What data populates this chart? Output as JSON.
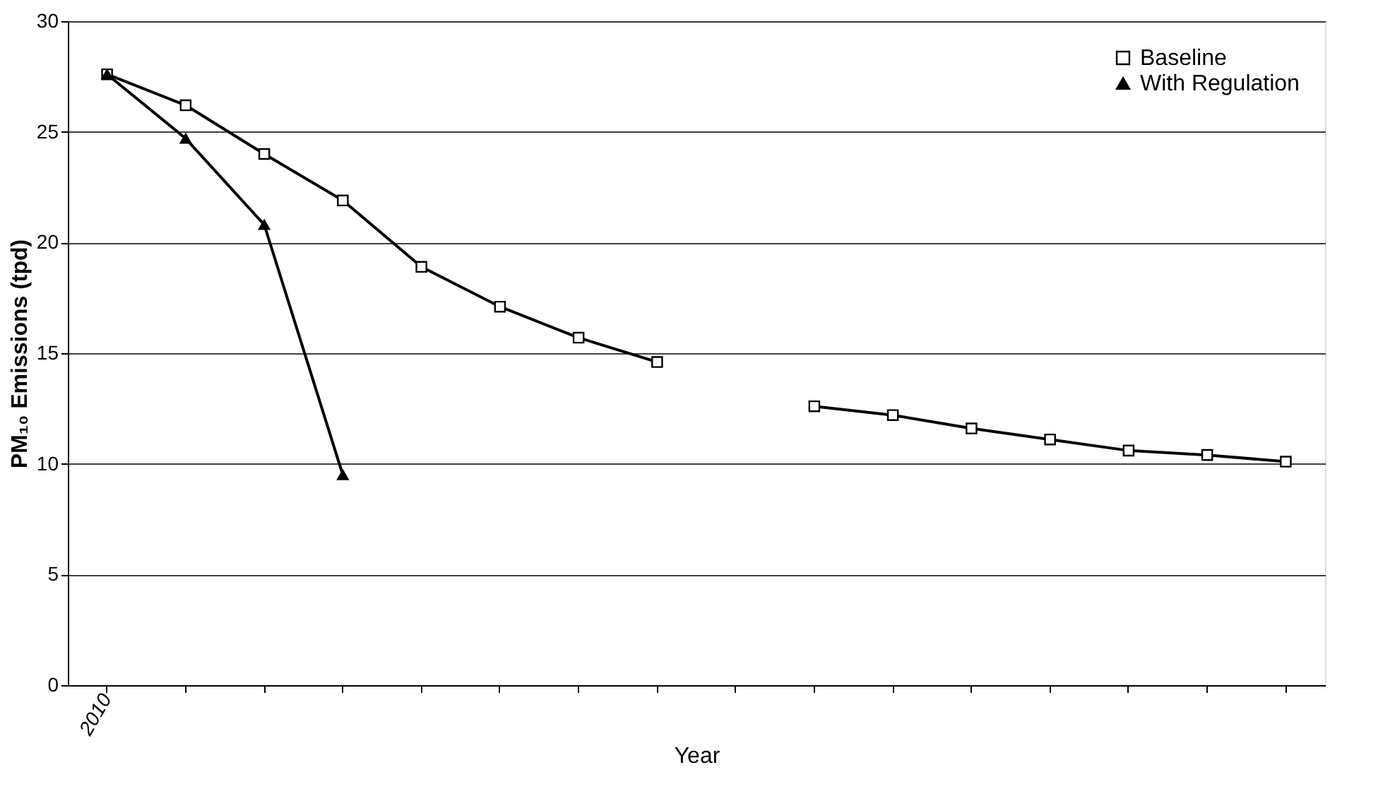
{
  "chart_data": {
    "type": "line",
    "xlabel": "Year",
    "ylabel": "PM₁₀ Emissions (tpd)",
    "categories": [
      "2010",
      null,
      null,
      null,
      null,
      null,
      null,
      null,
      null,
      null,
      null,
      null,
      null,
      null,
      null,
      null
    ],
    "series": [
      {
        "name": "Baseline",
        "color": "#000000",
        "marker": "square",
        "values": [
          27.6,
          26.2,
          24.0,
          21.9,
          18.9,
          17.1,
          15.7,
          14.6,
          null,
          12.6,
          12.2,
          11.6,
          11.1,
          10.6,
          10.4,
          10.1
        ]
      },
      {
        "name": "With Regulation",
        "color": "#000000",
        "marker": "triangle",
        "values": [
          27.6,
          24.7,
          20.8,
          9.5,
          null,
          null,
          null,
          null,
          null,
          null,
          null,
          null,
          null,
          null,
          null,
          null
        ]
      }
    ],
    "ylim": [
      0,
      30
    ],
    "yticks": [
      0,
      5,
      10,
      15,
      20,
      25,
      30
    ],
    "grid": "y",
    "legend": "top right",
    "line_style": "solid"
  }
}
